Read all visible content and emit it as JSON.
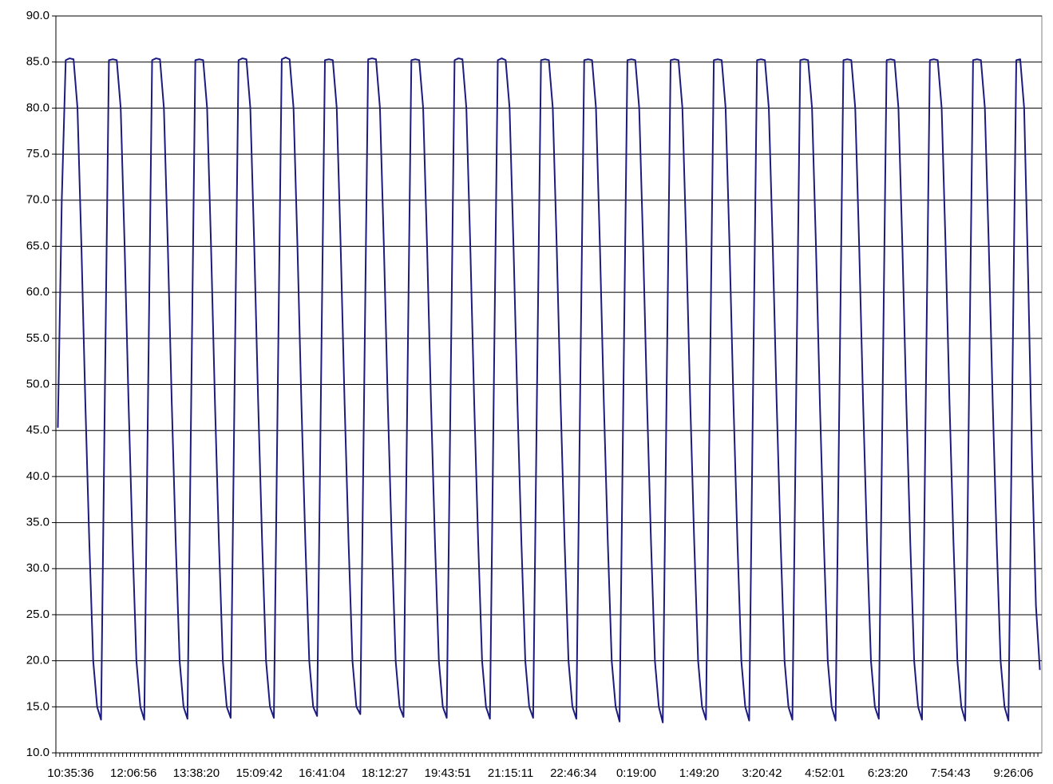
{
  "chart_data": {
    "type": "line",
    "ylim": [
      10,
      90
    ],
    "yticks": [
      {
        "value": 10,
        "label": "10.0"
      },
      {
        "value": 15,
        "label": "15.0"
      },
      {
        "value": 20,
        "label": "20.0"
      },
      {
        "value": 25,
        "label": "25.0"
      },
      {
        "value": 30,
        "label": "30.0"
      },
      {
        "value": 35,
        "label": "35.0"
      },
      {
        "value": 40,
        "label": "40.0"
      },
      {
        "value": 45,
        "label": "45.0"
      },
      {
        "value": 50,
        "label": "50.0"
      },
      {
        "value": 55,
        "label": "55.0"
      },
      {
        "value": 60,
        "label": "60.0"
      },
      {
        "value": 65,
        "label": "65.0"
      },
      {
        "value": 70,
        "label": "70.0"
      },
      {
        "value": 75,
        "label": "75.0"
      },
      {
        "value": 80,
        "label": "80.0"
      },
      {
        "value": 85,
        "label": "85.0"
      },
      {
        "value": 90,
        "label": "90.0"
      }
    ],
    "grid": true,
    "color": "#1c1c80",
    "categories": [
      "10:35:36",
      null,
      null,
      null,
      null,
      null,
      null,
      null,
      null,
      null,
      null,
      null,
      null,
      null,
      null,
      null,
      "12:06:56",
      null,
      null,
      null,
      null,
      null,
      null,
      null,
      null,
      null,
      null,
      null,
      null,
      null,
      null,
      null,
      "13:38:20",
      null,
      null,
      null,
      null,
      null,
      null,
      null,
      null,
      null,
      null,
      null,
      null,
      null,
      null,
      null,
      "15:09:42",
      null,
      null,
      null,
      null,
      null,
      null,
      null,
      null,
      null,
      null,
      null,
      null,
      null,
      null,
      null,
      "16:41:04",
      null,
      null,
      null,
      null,
      null,
      null,
      null,
      null,
      null,
      null,
      null,
      null,
      null,
      null,
      null,
      "18:12:27",
      null,
      null,
      null,
      null,
      null,
      null,
      null,
      null,
      null,
      null,
      null,
      null,
      null,
      null,
      null,
      "19:43:51",
      null,
      null,
      null,
      null,
      null,
      null,
      null,
      null,
      null,
      null,
      null,
      null,
      null,
      null,
      null,
      "21:15:11",
      null,
      null,
      null,
      null,
      null,
      null,
      null,
      null,
      null,
      null,
      null,
      null,
      null,
      null,
      null,
      "22:46:34",
      null,
      null,
      null,
      null,
      null,
      null,
      null,
      null,
      null,
      null,
      null,
      null,
      null,
      null,
      null,
      "0:19:00",
      null,
      null,
      null,
      null,
      null,
      null,
      null,
      null,
      null,
      null,
      null,
      null,
      null,
      null,
      null,
      "1:49:20",
      null,
      null,
      null,
      null,
      null,
      null,
      null,
      null,
      null,
      null,
      null,
      null,
      null,
      null,
      null,
      "3:20:42",
      null,
      null,
      null,
      null,
      null,
      null,
      null,
      null,
      null,
      null,
      null,
      null,
      null,
      null,
      null,
      "4:52:01",
      null,
      null,
      null,
      null,
      null,
      null,
      null,
      null,
      null,
      null,
      null,
      null,
      null,
      null,
      null,
      "6:23:20",
      null,
      null,
      null,
      null,
      null,
      null,
      null,
      null,
      null,
      null,
      null,
      null,
      null,
      null,
      null,
      "7:54:43",
      null,
      null,
      null,
      null,
      null,
      null,
      null,
      null,
      null,
      null,
      null,
      null,
      null,
      null,
      null,
      "9:26:06",
      null,
      null,
      null,
      null,
      null,
      null,
      null,
      null,
      null,
      null
    ],
    "values": [
      45.3,
      70,
      85.2,
      85.4,
      85.3,
      80,
      65,
      48,
      33,
      20,
      15,
      13.6,
      50,
      85.2,
      85.3,
      85.2,
      80,
      65,
      48,
      33,
      20,
      15,
      13.6,
      50,
      85.2,
      85.4,
      85.3,
      80,
      65,
      48,
      33,
      20,
      15,
      13.7,
      50,
      85.2,
      85.3,
      85.2,
      80,
      65,
      48,
      33,
      20,
      15,
      13.8,
      50,
      85.2,
      85.4,
      85.3,
      80,
      65,
      48,
      33,
      20,
      15,
      13.8,
      50,
      85.3,
      85.5,
      85.3,
      80,
      65,
      48,
      33,
      20,
      15,
      14.0,
      50,
      85.2,
      85.3,
      85.2,
      80,
      65,
      48,
      33,
      20,
      15,
      14.2,
      50,
      85.3,
      85.4,
      85.3,
      80,
      65,
      48,
      33,
      20,
      15,
      13.9,
      50,
      85.2,
      85.3,
      85.2,
      80,
      65,
      48,
      33,
      20,
      15,
      13.8,
      50,
      85.2,
      85.4,
      85.3,
      80,
      65,
      48,
      33,
      20,
      15,
      13.7,
      50,
      85.2,
      85.4,
      85.2,
      80,
      65,
      48,
      33,
      20,
      15,
      13.8,
      50,
      85.2,
      85.3,
      85.2,
      80,
      65,
      48,
      33,
      20,
      15,
      13.7,
      50,
      85.2,
      85.3,
      85.2,
      80,
      65,
      48,
      33,
      20,
      15,
      13.4,
      50,
      85.2,
      85.3,
      85.2,
      80,
      65,
      48,
      33,
      20,
      15,
      13.3,
      50,
      85.2,
      85.3,
      85.2,
      80,
      65,
      48,
      33,
      20,
      15,
      13.6,
      50,
      85.2,
      85.3,
      85.2,
      80,
      65,
      48,
      33,
      20,
      15,
      13.5,
      50,
      85.2,
      85.3,
      85.2,
      80,
      65,
      48,
      33,
      20,
      15,
      13.6,
      50,
      85.2,
      85.3,
      85.2,
      80,
      65,
      48,
      33,
      20,
      15,
      13.5,
      50,
      85.2,
      85.3,
      85.2,
      80,
      65,
      48,
      33,
      20,
      15,
      13.7,
      50,
      85.2,
      85.3,
      85.2,
      80,
      65,
      48,
      33,
      20,
      15,
      13.6,
      50,
      85.2,
      85.3,
      85.2,
      80,
      65,
      48,
      33,
      20,
      15,
      13.5,
      50,
      85.2,
      85.3,
      85.2,
      80,
      65,
      48,
      33,
      20,
      15,
      13.5,
      50,
      85.2,
      85.3,
      80,
      62,
      42,
      26,
      19
    ]
  }
}
